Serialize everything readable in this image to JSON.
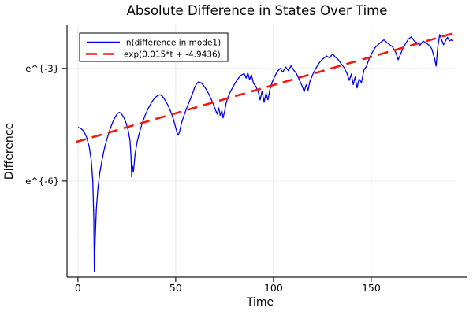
{
  "colors": {
    "blue_series": "#0000ee",
    "red_fit": "#f5160c",
    "grid": "#e9e9e9",
    "axis": "#1a1a1a",
    "background": "#ffffff",
    "legend_border": "#000000"
  },
  "chart_data": {
    "type": "line",
    "title": "Absolute Difference in States Over Time",
    "xlabel": "Time",
    "ylabel": "Difference",
    "yscale": "log-e",
    "grid": true,
    "legend_position": "top-left",
    "xlim": [
      -5.6,
      193.2
    ],
    "ylim_ln": [
      -8.56,
      -1.85
    ],
    "xticks": [
      {
        "value": 0,
        "label": "0"
      },
      {
        "value": 50,
        "label": "50"
      },
      {
        "value": 100,
        "label": "100"
      },
      {
        "value": 150,
        "label": "150"
      }
    ],
    "yticks": [
      {
        "value": -3,
        "label": "e^{-3}"
      },
      {
        "value": -6,
        "label": "e^{-6}"
      }
    ],
    "series": [
      {
        "name": "ln(difference in mode1)",
        "color": "#0000ee",
        "style": "solid",
        "points_t_ln": [
          [
            0,
            -4.57
          ],
          [
            1.5,
            -4.6
          ],
          [
            3,
            -4.67
          ],
          [
            4.5,
            -4.84
          ],
          [
            5.8,
            -5.1
          ],
          [
            6.8,
            -5.45
          ],
          [
            7.6,
            -6.0
          ],
          [
            8.1,
            -7.0
          ],
          [
            8.4,
            -8.42
          ],
          [
            8.8,
            -7.6
          ],
          [
            9.4,
            -6.75
          ],
          [
            10.2,
            -6.2
          ],
          [
            11.2,
            -5.77
          ],
          [
            12.4,
            -5.42
          ],
          [
            13.6,
            -5.12
          ],
          [
            15,
            -4.85
          ],
          [
            16.4,
            -4.62
          ],
          [
            17.8,
            -4.43
          ],
          [
            19,
            -4.3
          ],
          [
            20.2,
            -4.2
          ],
          [
            21.2,
            -4.17
          ],
          [
            22.2,
            -4.21
          ],
          [
            23.4,
            -4.3
          ],
          [
            24.6,
            -4.45
          ],
          [
            25.7,
            -4.65
          ],
          [
            26.6,
            -4.92
          ],
          [
            27.1,
            -5.3
          ],
          [
            27.5,
            -5.89
          ],
          [
            27.9,
            -5.6
          ],
          [
            28.4,
            -5.75
          ],
          [
            29.2,
            -5.3
          ],
          [
            30.2,
            -4.97
          ],
          [
            31.5,
            -4.7
          ],
          [
            33,
            -4.44
          ],
          [
            34.6,
            -4.22
          ],
          [
            36.2,
            -4.04
          ],
          [
            37.8,
            -3.89
          ],
          [
            39.4,
            -3.78
          ],
          [
            40.8,
            -3.72
          ],
          [
            42,
            -3.7
          ],
          [
            43.2,
            -3.74
          ],
          [
            44.5,
            -3.84
          ],
          [
            46,
            -3.98
          ],
          [
            47.4,
            -4.14
          ],
          [
            48.8,
            -4.35
          ],
          [
            50,
            -4.58
          ],
          [
            50.8,
            -4.73
          ],
          [
            51.3,
            -4.78
          ],
          [
            52,
            -4.68
          ],
          [
            53,
            -4.45
          ],
          [
            54.2,
            -4.26
          ],
          [
            55.6,
            -4.06
          ],
          [
            57,
            -3.88
          ],
          [
            58.4,
            -3.7
          ],
          [
            59.6,
            -3.52
          ],
          [
            60.8,
            -3.4
          ],
          [
            61.8,
            -3.36
          ],
          [
            63,
            -3.39
          ],
          [
            64.2,
            -3.45
          ],
          [
            65.5,
            -3.55
          ],
          [
            66.8,
            -3.67
          ],
          [
            68,
            -3.8
          ],
          [
            69.2,
            -3.95
          ],
          [
            70.3,
            -4.1
          ],
          [
            71.2,
            -4.22
          ],
          [
            72,
            -4.05
          ],
          [
            72.8,
            -4.25
          ],
          [
            73.6,
            -4.12
          ],
          [
            74.2,
            -4.32
          ],
          [
            75,
            -4.15
          ],
          [
            75.8,
            -3.92
          ],
          [
            76.8,
            -3.76
          ],
          [
            78,
            -3.62
          ],
          [
            79.2,
            -3.5
          ],
          [
            80.5,
            -3.38
          ],
          [
            82,
            -3.27
          ],
          [
            83.5,
            -3.18
          ],
          [
            85,
            -3.14
          ],
          [
            86,
            -3.26
          ],
          [
            86.9,
            -3.12
          ],
          [
            87.8,
            -3.3
          ],
          [
            88.7,
            -3.17
          ],
          [
            89.8,
            -3.4
          ],
          [
            91,
            -3.48
          ],
          [
            92.2,
            -3.62
          ],
          [
            93.2,
            -3.84
          ],
          [
            94.2,
            -3.6
          ],
          [
            95.2,
            -3.9
          ],
          [
            96.2,
            -3.66
          ],
          [
            97.2,
            -3.84
          ],
          [
            98.2,
            -3.56
          ],
          [
            99.4,
            -3.36
          ],
          [
            100.6,
            -3.22
          ],
          [
            102,
            -3.08
          ],
          [
            103.4,
            -3.0
          ],
          [
            104.8,
            -3.1
          ],
          [
            106.2,
            -2.96
          ],
          [
            107.6,
            -3.06
          ],
          [
            109,
            -2.93
          ],
          [
            110.4,
            -3.05
          ],
          [
            111.8,
            -3.14
          ],
          [
            113.2,
            -3.3
          ],
          [
            114.6,
            -3.46
          ],
          [
            115.7,
            -3.62
          ],
          [
            116.7,
            -3.44
          ],
          [
            117.7,
            -3.58
          ],
          [
            118.7,
            -3.34
          ],
          [
            120,
            -3.17
          ],
          [
            121.4,
            -3.03
          ],
          [
            122.8,
            -2.9
          ],
          [
            124.2,
            -2.8
          ],
          [
            125.7,
            -2.73
          ],
          [
            127.2,
            -2.67
          ],
          [
            128.7,
            -2.72
          ],
          [
            130.2,
            -2.62
          ],
          [
            131.7,
            -2.7
          ],
          [
            133.2,
            -2.77
          ],
          [
            134.7,
            -2.88
          ],
          [
            136.2,
            -2.98
          ],
          [
            137.6,
            -3.13
          ],
          [
            138.8,
            -3.32
          ],
          [
            139.8,
            -3.15
          ],
          [
            140.8,
            -3.43
          ],
          [
            141.8,
            -3.23
          ],
          [
            142.8,
            -3.52
          ],
          [
            143.8,
            -3.28
          ],
          [
            145,
            -3.38
          ],
          [
            146.3,
            -3.04
          ],
          [
            147.6,
            -2.94
          ],
          [
            149,
            -2.74
          ],
          [
            150.5,
            -2.58
          ],
          [
            152,
            -2.45
          ],
          [
            153.5,
            -2.37
          ],
          [
            155,
            -2.3
          ],
          [
            156.5,
            -2.24
          ],
          [
            158,
            -2.31
          ],
          [
            159.5,
            -2.37
          ],
          [
            161,
            -2.43
          ],
          [
            162.5,
            -2.57
          ],
          [
            163.8,
            -2.77
          ],
          [
            165,
            -2.62
          ],
          [
            166.2,
            -2.47
          ],
          [
            167.5,
            -2.35
          ],
          [
            169,
            -2.22
          ],
          [
            170.5,
            -2.16
          ],
          [
            172,
            -2.27
          ],
          [
            173.5,
            -2.32
          ],
          [
            175,
            -2.38
          ],
          [
            176.5,
            -2.27
          ],
          [
            178,
            -2.32
          ],
          [
            179.5,
            -2.38
          ],
          [
            181,
            -2.48
          ],
          [
            182.4,
            -2.73
          ],
          [
            183.2,
            -2.94
          ],
          [
            184,
            -2.45
          ],
          [
            185,
            -2.1
          ],
          [
            186,
            -2.23
          ],
          [
            187,
            -2.37
          ],
          [
            188,
            -2.27
          ],
          [
            189,
            -2.17
          ],
          [
            190,
            -2.27
          ],
          [
            191,
            -2.24
          ],
          [
            192,
            -2.28
          ]
        ]
      },
      {
        "name": "exp(0.015*t + -4.9436)",
        "color": "#f5160c",
        "style": "dashed",
        "fit": {
          "slope": 0.015,
          "intercept": -4.9436
        },
        "t_range": [
          -1,
          193.5
        ]
      }
    ]
  }
}
